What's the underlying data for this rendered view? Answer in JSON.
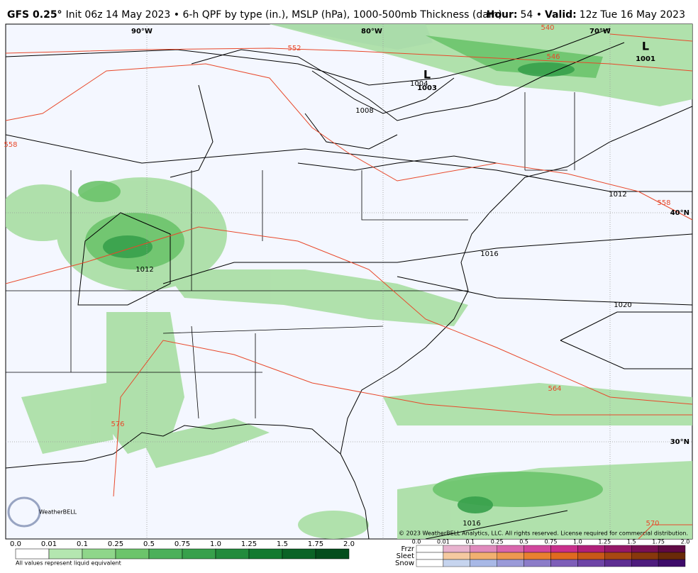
{
  "header": {
    "model": "GFS 0.25°",
    "description": "Init 06z 14 May 2023 • 6-h QPF by type (in.), MSLP (hPa), 1000-500mb Thickness (dam)",
    "hour_label": "Hour:",
    "hour": "54 •",
    "valid_label": "Valid:",
    "valid": "12z Tue 16 May 2023"
  },
  "map": {
    "grid_labels": [
      "90°W",
      "80°W",
      "70°W",
      "40°N",
      "30°N"
    ],
    "isobar_labels": [
      "1004",
      "1008",
      "1012",
      "1012",
      "1016",
      "1020",
      "1016"
    ],
    "lows": [
      {
        "symbol": "L",
        "pressure": "1003"
      },
      {
        "symbol": "L",
        "pressure": "1001"
      }
    ],
    "thickness_labels": [
      "552",
      "546",
      "540",
      "558",
      "558",
      "564",
      "570",
      "576"
    ],
    "copyright": "© 2023 WeatherBELL Analytics, LLC. All rights reserved. License required for commercial distribution.",
    "logo": "WeatherBELL"
  },
  "legend": {
    "rain_ticks": [
      "0.0",
      "0.01",
      "0.1",
      "0.25",
      "0.5",
      "0.75",
      "1.0",
      "1.25",
      "1.5",
      "1.75",
      "2.0"
    ],
    "note": "All values represent liquid equivalent",
    "ptype_ticks": [
      "0.0",
      "0.01",
      "0.1",
      "0.25",
      "0.5",
      "0.75",
      "1.0",
      "1.25",
      "1.5",
      "1.75",
      "2.0"
    ],
    "ptypes": [
      "Frzr",
      "Sleet",
      "Snow"
    ]
  }
}
